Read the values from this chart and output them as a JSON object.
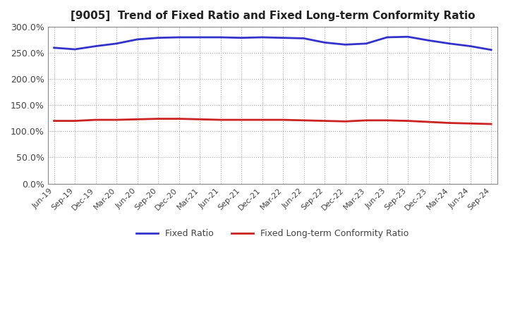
{
  "title": "[9005]  Trend of Fixed Ratio and Fixed Long-term Conformity Ratio",
  "x_labels": [
    "Jun-19",
    "Sep-19",
    "Dec-19",
    "Mar-20",
    "Jun-20",
    "Sep-20",
    "Dec-20",
    "Mar-21",
    "Jun-21",
    "Sep-21",
    "Dec-21",
    "Mar-22",
    "Jun-22",
    "Sep-22",
    "Dec-22",
    "Mar-23",
    "Jun-23",
    "Sep-23",
    "Dec-23",
    "Mar-24",
    "Jun-24",
    "Sep-24"
  ],
  "fixed_ratio": [
    260,
    257,
    263,
    268,
    276,
    279,
    280,
    280,
    280,
    279,
    280,
    279,
    278,
    270,
    266,
    268,
    280,
    281,
    274,
    268,
    263,
    256
  ],
  "fixed_lt_ratio": [
    120,
    120,
    122,
    122,
    123,
    124,
    124,
    123,
    122,
    122,
    122,
    122,
    121,
    120,
    119,
    121,
    121,
    120,
    118,
    116,
    115,
    114
  ],
  "fixed_ratio_color": "#3333CC",
  "fixed_lt_ratio_color": "#CC2222",
  "background_color": "#FFFFFF",
  "plot_bg_color": "#FFFFFF",
  "grid_color": "#AAAAAA",
  "ylim": [
    0,
    300
  ],
  "yticks": [
    0,
    50,
    100,
    150,
    200,
    250,
    300
  ],
  "ytick_labels": [
    "0.0%",
    "50.0%",
    "100.0%",
    "150.0%",
    "200.0%",
    "250.0%",
    "300.0%"
  ],
  "legend_fixed_ratio": "Fixed Ratio",
  "legend_fixed_lt_ratio": "Fixed Long-term Conformity Ratio",
  "line_width": 2.0
}
